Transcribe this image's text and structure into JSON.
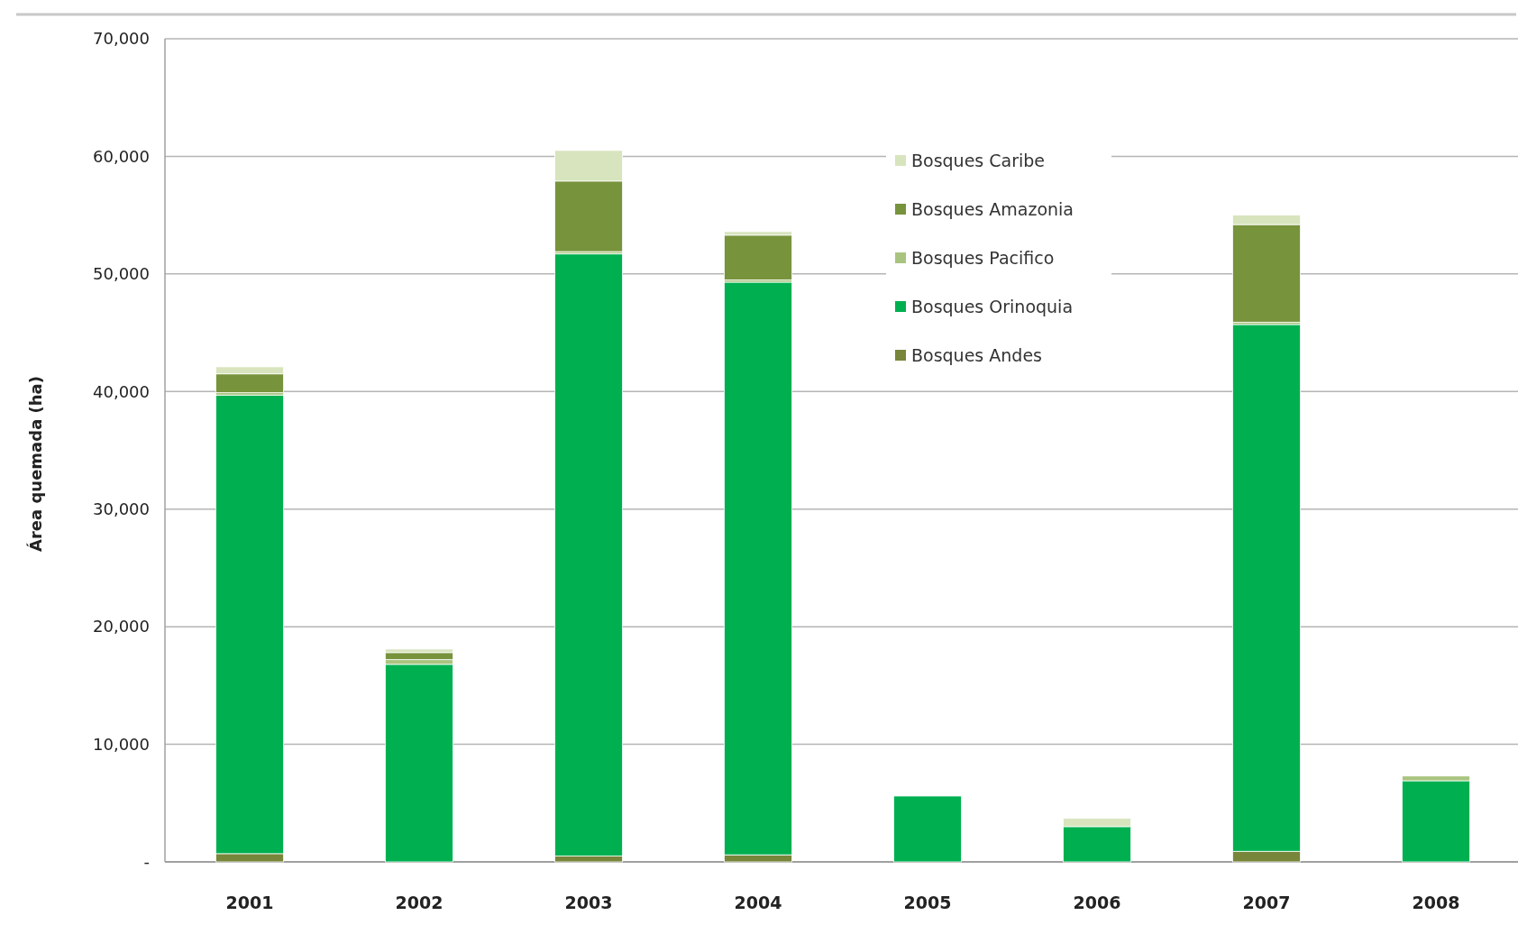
{
  "chart_data": {
    "type": "bar",
    "stacked": true,
    "ylabel": "Área quemada  (ha)",
    "categories": [
      "2001",
      "2002",
      "2003",
      "2004",
      "2005",
      "2006",
      "2007",
      "2008"
    ],
    "series": [
      {
        "name": "Bosques Andes",
        "color": "#77863a",
        "values": [
          700,
          0,
          500,
          600,
          0,
          0,
          900,
          0
        ]
      },
      {
        "name": "Bosques Orinoquia",
        "color": "#00b050",
        "values": [
          39000,
          16800,
          51200,
          48700,
          5600,
          3000,
          44800,
          6900
        ]
      },
      {
        "name": "Bosques Pacifico",
        "color": "#a9c47f",
        "values": [
          200,
          400,
          200,
          200,
          0,
          0,
          200,
          400
        ]
      },
      {
        "name": "Bosques Amazonia",
        "color": "#77933c",
        "values": [
          1600,
          600,
          6000,
          3800,
          0,
          0,
          8300,
          0
        ]
      },
      {
        "name": "Bosques Caribe",
        "color": "#d7e4bd",
        "values": [
          600,
          300,
          2600,
          300,
          0,
          700,
          800,
          0
        ]
      }
    ],
    "ylim": [
      0,
      70000
    ],
    "yticks": [
      {
        "value": 0,
        "label": "-"
      },
      {
        "value": 10000,
        "label": "10,000"
      },
      {
        "value": 20000,
        "label": "20,000"
      },
      {
        "value": 30000,
        "label": "30,000"
      },
      {
        "value": 40000,
        "label": "40,000"
      },
      {
        "value": 50000,
        "label": "50,000"
      },
      {
        "value": 60000,
        "label": "60,000"
      },
      {
        "value": 70000,
        "label": "70,000"
      }
    ],
    "grid": "y",
    "legend": "top"
  }
}
